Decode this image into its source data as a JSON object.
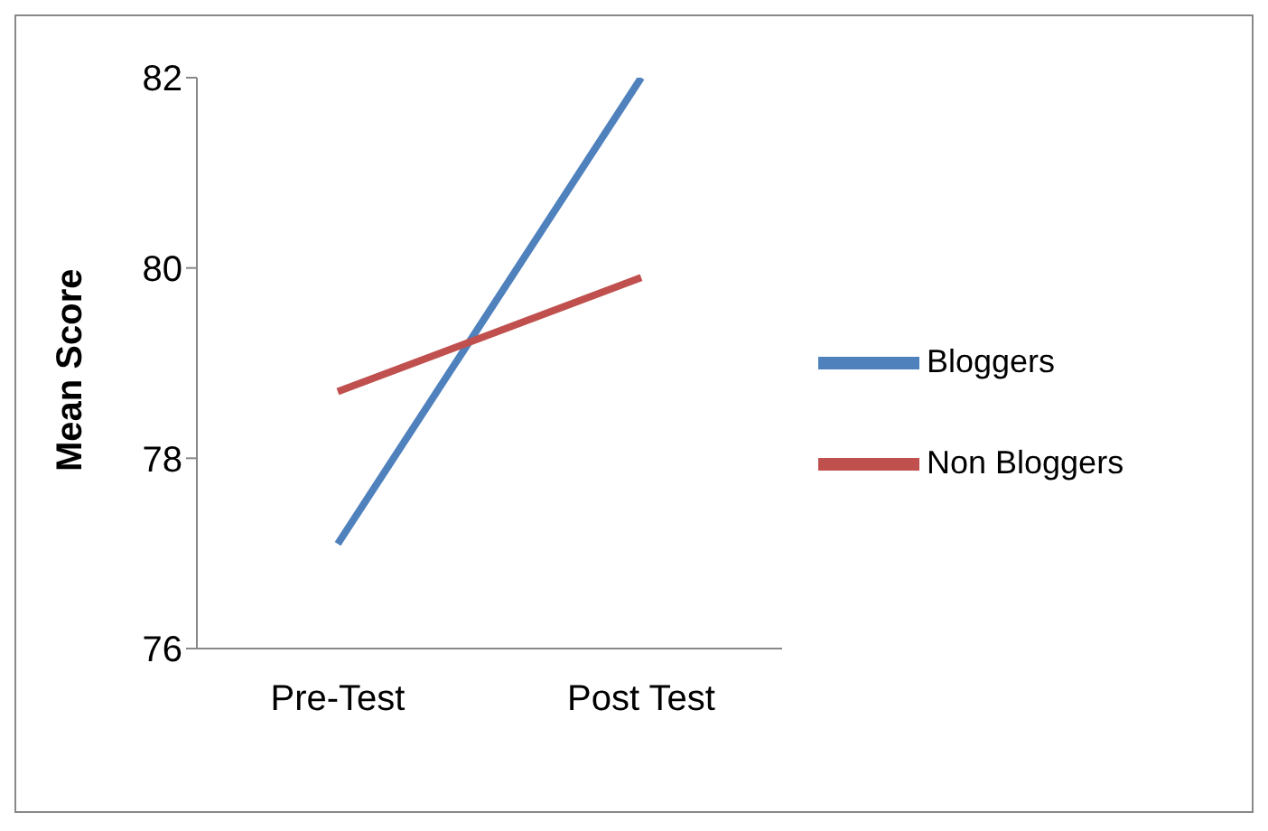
{
  "chart_data": {
    "type": "line",
    "ylabel": "Mean Score",
    "categories": [
      "Pre-Test",
      "Post Test"
    ],
    "series": [
      {
        "name": "Bloggers",
        "color": "#4f81bd",
        "values": [
          77.1,
          82
        ]
      },
      {
        "name": "Non Bloggers",
        "color": "#c0504d",
        "values": [
          78.7,
          79.9
        ]
      }
    ],
    "ylim": [
      76,
      82
    ],
    "yticks": [
      76,
      78,
      80,
      82
    ],
    "grid": false,
    "legend": "right",
    "marker": "none",
    "line_style": "solid"
  }
}
